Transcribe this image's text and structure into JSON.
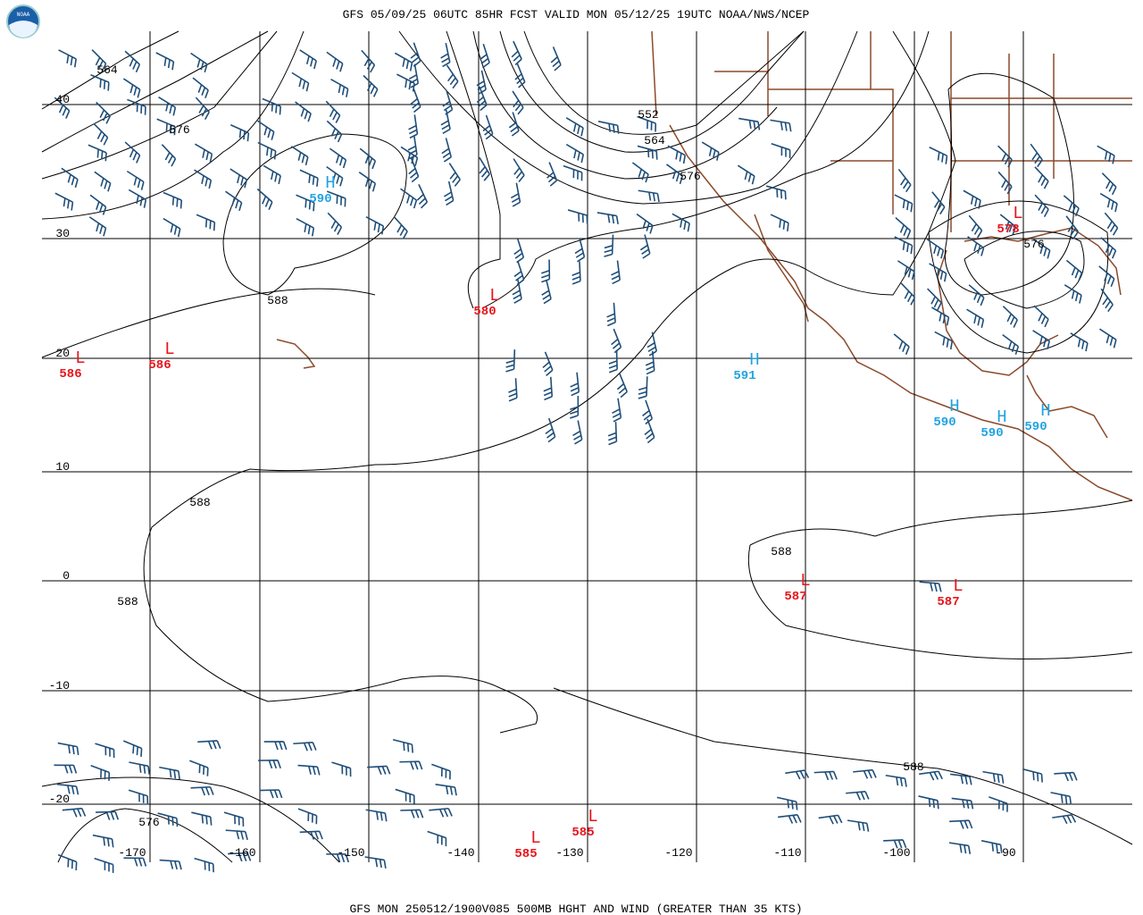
{
  "header": {
    "title": "GFS 05/09/25 06UTC 85HR FCST VALID MON 05/12/25 19UTC NOAA/NWS/NCEP",
    "logo": "NOAA"
  },
  "footer": {
    "caption": "GFS MON 250512/1900V085 500MB HGHT AND WIND (GREATER THAN 35 KTS)"
  },
  "lat_labels": [
    "40",
    "30",
    "20",
    "10",
    "0",
    "-10",
    "-20"
  ],
  "lon_labels": [
    "-170",
    "-160",
    "-150",
    "-140",
    "-130",
    "-120",
    "-110",
    "-100",
    "-90"
  ],
  "contour_labels": [
    "564",
    "576",
    "588",
    "552",
    "564",
    "576",
    "576",
    "588",
    "588",
    "588",
    "588",
    "576"
  ],
  "centers": [
    {
      "letter": "L",
      "value": "586"
    },
    {
      "letter": "L",
      "value": "586"
    },
    {
      "letter": "H",
      "value": "590"
    },
    {
      "letter": "L",
      "value": "580"
    },
    {
      "letter": "L",
      "value": "578"
    },
    {
      "letter": "H",
      "value": "591"
    },
    {
      "letter": "H",
      "value": "590"
    },
    {
      "letter": "H",
      "value": "590"
    },
    {
      "letter": "H",
      "value": "590"
    },
    {
      "letter": "L",
      "value": "587"
    },
    {
      "letter": "L",
      "value": "587"
    },
    {
      "letter": "L",
      "value": "585"
    },
    {
      "letter": "L",
      "value": "585"
    }
  ]
}
